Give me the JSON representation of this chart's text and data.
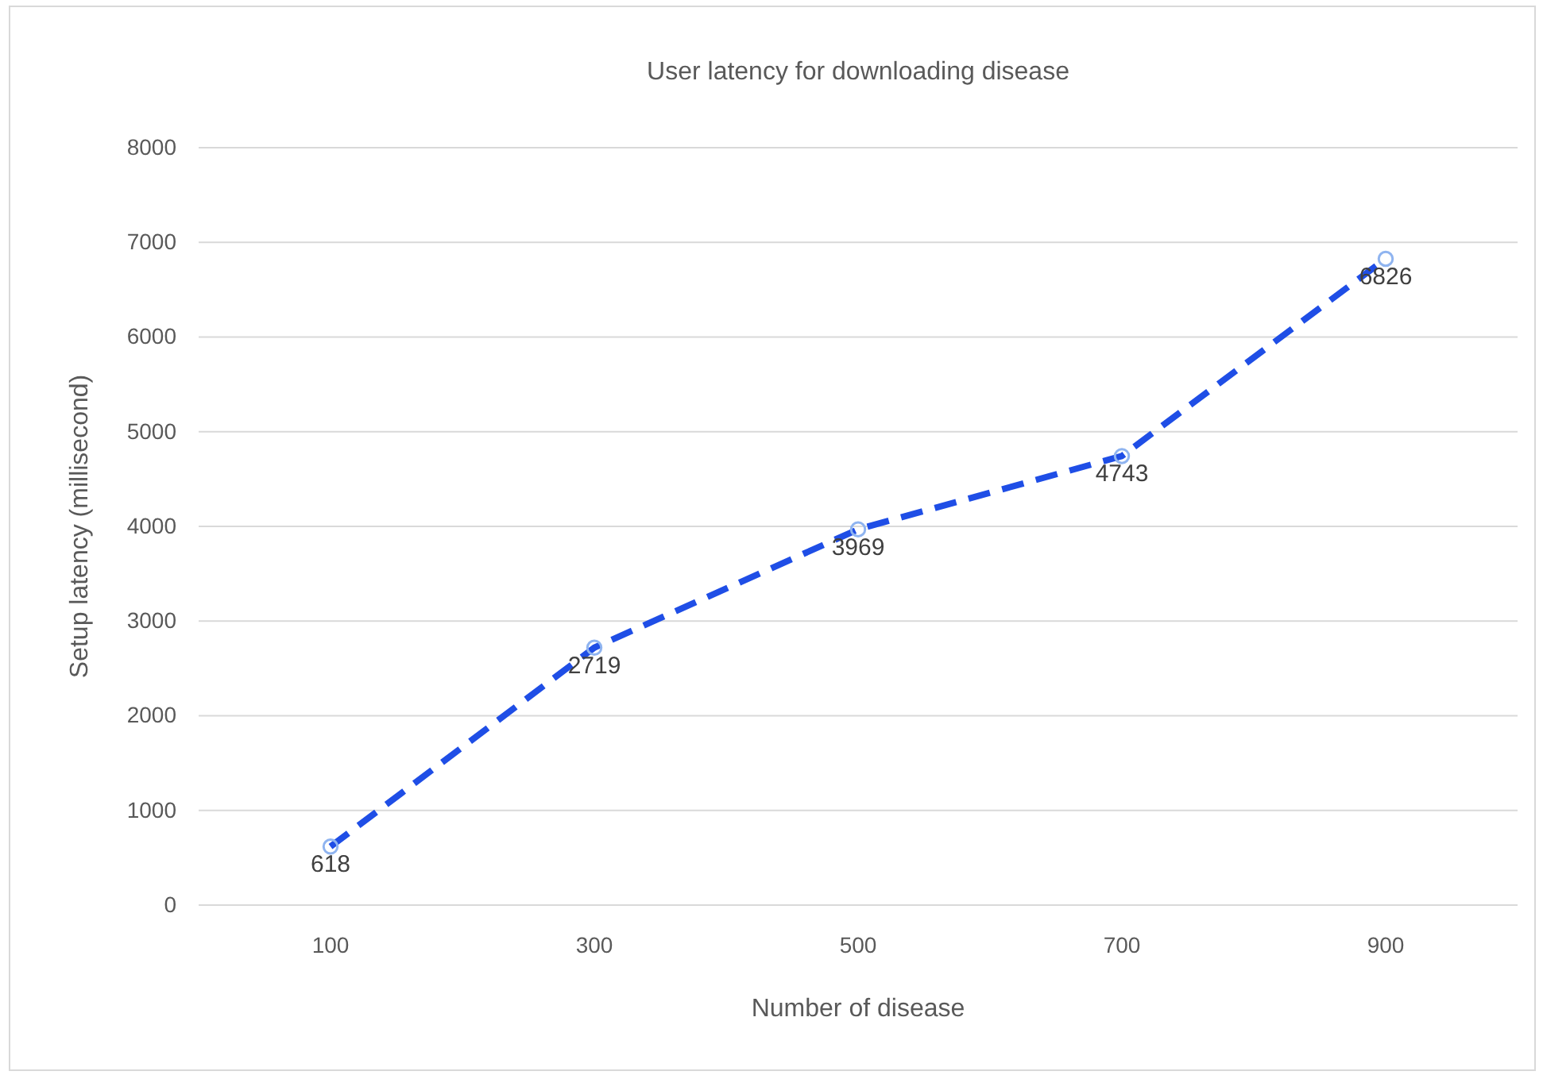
{
  "chart_data": {
    "type": "line",
    "title": "User latency for downloading disease",
    "xlabel": "Number of disease",
    "ylabel": "Setup latency (millisecond)",
    "categories": [
      "100",
      "300",
      "500",
      "700",
      "900"
    ],
    "series": [
      {
        "color": "#1f4ee6",
        "values": [
          618,
          2719,
          3969,
          4743,
          6826
        ]
      }
    ],
    "ylim": [
      0,
      8000
    ],
    "yticks": [
      0,
      1000,
      2000,
      3000,
      4000,
      5000,
      6000,
      7000,
      8000
    ],
    "grid": "y",
    "marker": "circle",
    "line_style": "dashed",
    "data_labels": true
  }
}
